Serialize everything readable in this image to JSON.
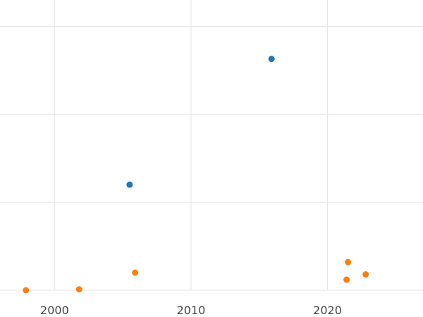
{
  "chart_data": {
    "type": "scatter",
    "title": "",
    "xlabel": "",
    "ylabel": "",
    "xlim": [
      1996,
      2027
    ],
    "ylim": [
      0,
      3.3
    ],
    "x_ticks": [
      2000,
      2010,
      2020
    ],
    "x_tick_labels": [
      "2000",
      "2010",
      "2020"
    ],
    "y_gridlines": [
      0,
      1,
      2,
      3
    ],
    "grid": true,
    "legend": "none",
    "series": [
      {
        "color": "#1f77b4",
        "points": [
          {
            "x": 2005.5,
            "y": 1.2
          },
          {
            "x": 2015.9,
            "y": 2.63
          }
        ]
      },
      {
        "color": "#ff7f0e",
        "points": [
          {
            "x": 1997.9,
            "y": 0.0
          },
          {
            "x": 2001.8,
            "y": 0.01
          },
          {
            "x": 2005.9,
            "y": 0.2
          },
          {
            "x": 2021.4,
            "y": 0.12
          },
          {
            "x": 2021.5,
            "y": 0.32
          },
          {
            "x": 2022.8,
            "y": 0.18
          }
        ]
      }
    ]
  }
}
